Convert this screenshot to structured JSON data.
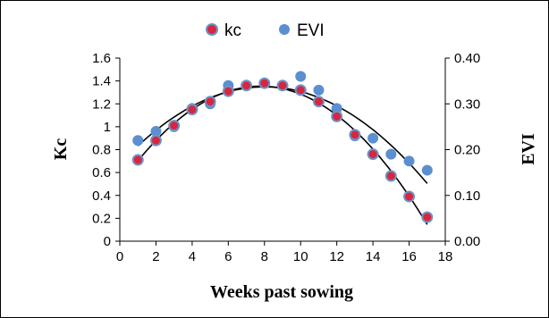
{
  "chart_data": {
    "type": "scatter",
    "title": "",
    "xlabel": "Weeks past sowing",
    "ylabel_left": "Kc",
    "ylabel_right": "EVI",
    "xlim": [
      0,
      18
    ],
    "ylim_left": [
      0,
      1.6
    ],
    "ylim_right": [
      0,
      0.4
    ],
    "x_ticks": [
      "0",
      "2",
      "4",
      "6",
      "8",
      "10",
      "12",
      "14",
      "16",
      "18"
    ],
    "y_left_ticks": [
      "0",
      "0.2",
      "0.4",
      "0.6",
      "0.8",
      "1",
      "1.2",
      "1.4",
      "1.6"
    ],
    "y_right_ticks": [
      "0.00",
      "0.10",
      "0.20",
      "0.30",
      "0.40"
    ],
    "grid": false,
    "legend_position": "top",
    "series": [
      {
        "name": "kc",
        "axis": "left",
        "color": "#d7263d",
        "edge_color": "#6e93c7",
        "x": [
          1,
          2,
          3,
          4,
          5,
          6,
          7,
          8,
          9,
          10,
          11,
          12,
          13,
          14,
          15,
          16,
          17
        ],
        "values": [
          0.71,
          0.88,
          1.01,
          1.15,
          1.22,
          1.31,
          1.36,
          1.38,
          1.36,
          1.32,
          1.22,
          1.09,
          0.93,
          0.76,
          0.57,
          0.39,
          0.21
        ],
        "trendline": {
          "type": "polynomial",
          "order": 2
        }
      },
      {
        "name": "EVI",
        "axis": "right",
        "color": "#5b8fd0",
        "x": [
          1,
          2,
          3,
          4,
          5,
          6,
          7,
          8,
          9,
          10,
          11,
          12,
          13,
          14,
          15,
          16,
          17
        ],
        "values": [
          0.22,
          0.24,
          0.25,
          0.29,
          0.3,
          0.34,
          0.34,
          0.345,
          0.34,
          0.36,
          0.33,
          0.29,
          0.23,
          0.225,
          0.19,
          0.175,
          0.155
        ],
        "trendline": {
          "type": "polynomial",
          "order": 2
        }
      }
    ]
  }
}
